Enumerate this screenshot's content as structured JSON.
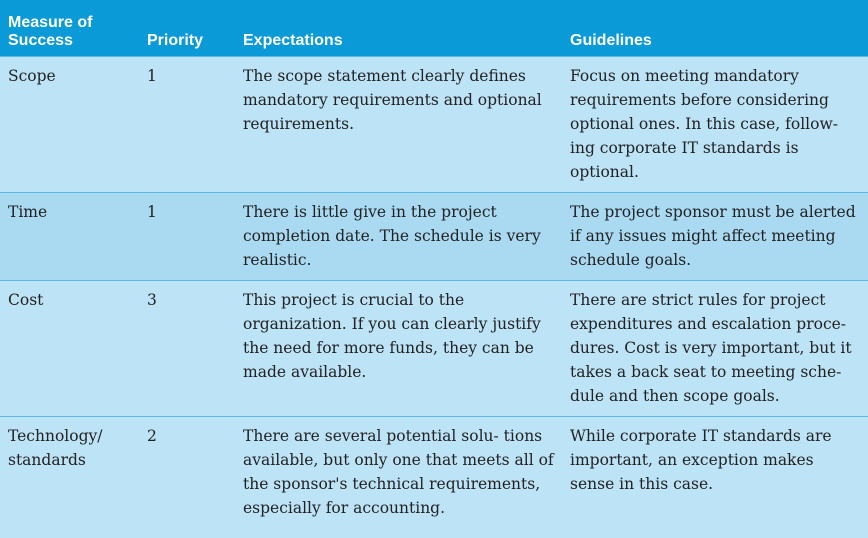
{
  "columns": {
    "measure": "Measure of Success",
    "priority": "Priority",
    "expectations": "Expectations",
    "guidelines": "Guidelines"
  },
  "rows": [
    {
      "measure": "Scope",
      "priority": "1",
      "expectations": "The scope statement clearly defines mandatory requirements and optional requirements.",
      "guidelines": "Focus on meeting mandatory requirements before considering optional ones. In this case, follow- ing corporate IT standards is optional."
    },
    {
      "measure": "Time",
      "priority": "1",
      "expectations": "There is little give in the project completion date. The schedule is very realistic.",
      "guidelines": "The project sponsor must be alerted if any issues might affect meeting schedule goals."
    },
    {
      "measure": "Cost",
      "priority": "3",
      "expectations": "This project is crucial to the organization. If you can clearly justify the need for more funds, they can be made available.",
      "guidelines": "There are strict rules for project expenditures and escalation proce- dures. Cost is very important, but it takes a back seat to meeting sche- dule and then scope goals."
    },
    {
      "measure": "Technology/ standards",
      "priority": "2",
      "expectations": "There are several potential solu- tions available, but only one that meets all of the sponsor's technical requirements, especially for accounting.",
      "guidelines": "While corporate IT standards are important, an exception makes sense in this case."
    }
  ]
}
